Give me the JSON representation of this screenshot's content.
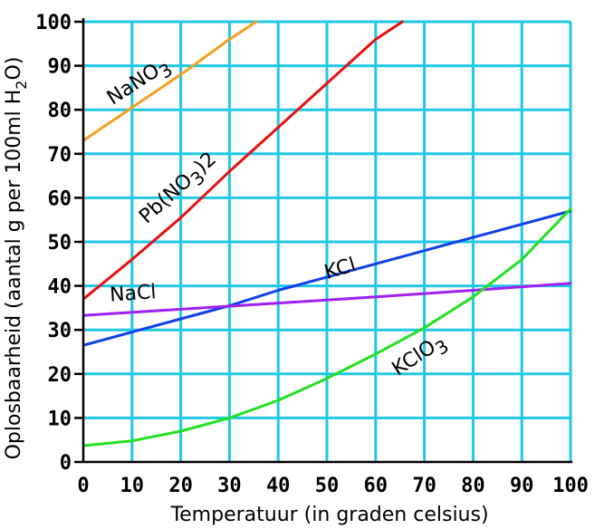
{
  "chart_data": {
    "type": "line",
    "xlabel": "Temperatuur (in graden celsius)",
    "ylabel": "Oplosbaarheid (aantal g per 100ml H",
    "ylabel_sub": "2",
    "ylabel_tail": "O)",
    "xlim": [
      0,
      100
    ],
    "ylim": [
      0,
      100
    ],
    "x_ticks": [
      0,
      10,
      20,
      30,
      40,
      50,
      60,
      70,
      80,
      90,
      100
    ],
    "y_ticks": [
      0,
      10,
      20,
      30,
      40,
      50,
      60,
      70,
      80,
      90,
      100
    ],
    "grid": true,
    "grid_color": "#1ec8e6",
    "series": [
      {
        "name": "NaNO3",
        "label_main": "NaNO",
        "label_sub": "3",
        "label_tail": "",
        "color": "#f5a020",
        "x": [
          0,
          10,
          20,
          30,
          35.5
        ],
        "y": [
          73,
          80.5,
          88,
          96,
          100
        ]
      },
      {
        "name": "Pb(NO3)2",
        "label_main": "Pb(NO",
        "label_sub": "3",
        "label_tail": ")2",
        "color": "#e81010",
        "x": [
          0,
          10,
          20,
          30,
          40,
          50,
          60,
          65.5
        ],
        "y": [
          37,
          46,
          55.5,
          66,
          76,
          86,
          96,
          100
        ]
      },
      {
        "name": "KCl",
        "label_main": "KCl",
        "label_sub": "",
        "label_tail": "",
        "color": "#1040e8",
        "x": [
          0,
          10,
          20,
          30,
          40,
          50,
          60,
          70,
          80,
          90,
          100
        ],
        "y": [
          26.5,
          29.5,
          32.5,
          35.5,
          39,
          42,
          45,
          48,
          51,
          54,
          57
        ]
      },
      {
        "name": "NaCl",
        "label_main": "NaCl",
        "label_sub": "",
        "label_tail": "",
        "color": "#a020f0",
        "x": [
          0,
          20,
          40,
          60,
          80,
          100
        ],
        "y": [
          33.3,
          34.7,
          36.1,
          37.5,
          39,
          40.6
        ]
      },
      {
        "name": "KClO3",
        "label_main": "KClO",
        "label_sub": "3",
        "label_tail": "",
        "color": "#22e022",
        "x": [
          0,
          10,
          20,
          30,
          40,
          50,
          60,
          70,
          80,
          90,
          100
        ],
        "y": [
          3.7,
          4.8,
          7,
          10,
          14,
          19,
          24.5,
          30.5,
          37.5,
          46,
          57.5
        ]
      }
    ]
  }
}
